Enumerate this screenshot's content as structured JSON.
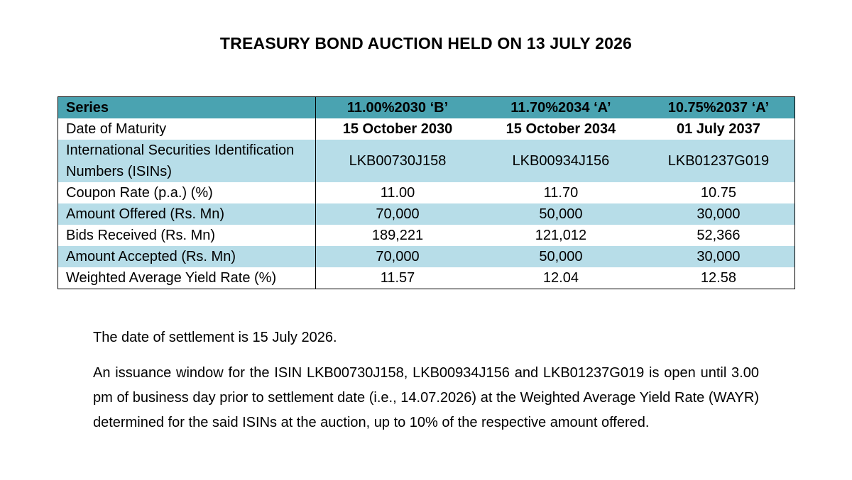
{
  "title": "TREASURY BOND AUCTION HELD ON 13 JULY 2026",
  "table": {
    "header": {
      "label": "Series",
      "series": [
        "11.00%2030 ‘B’",
        "11.70%2034 ‘A’",
        "10.75%2037 ‘A’"
      ]
    },
    "rows": [
      {
        "label": "Date of Maturity",
        "values": [
          "15 October 2030",
          "15 October 2034",
          "01 July 2037"
        ]
      },
      {
        "label": "International Securities Identification Numbers (ISINs)",
        "values": [
          "LKB00730J158",
          "LKB00934J156",
          "LKB01237G019"
        ]
      },
      {
        "label": "Coupon Rate (p.a.) (%)",
        "values": [
          "11.00",
          "11.70",
          "10.75"
        ]
      },
      {
        "label": "Amount Offered (Rs. Mn)",
        "values": [
          "70,000",
          "50,000",
          "30,000"
        ]
      },
      {
        "label": "Bids Received (Rs. Mn)",
        "values": [
          "189,221",
          "121,012",
          "52,366"
        ]
      },
      {
        "label": "Amount Accepted (Rs. Mn)",
        "values": [
          "70,000",
          "50,000",
          "30,000"
        ]
      },
      {
        "label": "Weighted Average Yield Rate (%)",
        "values": [
          "11.57",
          "12.04",
          "12.58"
        ]
      }
    ]
  },
  "notes": {
    "settlement": "The date of settlement is 15 July 2026.",
    "issuance_window": "An issuance window for the ISIN LKB00730J158, LKB00934J156 and LKB01237G019 is open until 3.00 pm of business day prior to settlement date (i.e., 14.07.2026) at the Weighted Average Yield Rate (WAYR) determined for the said ISINs at the auction, up to 10% of the respective amount offered."
  },
  "colors": {
    "header_bg": "#4aa3b1",
    "shade_bg": "#b7dde8"
  }
}
